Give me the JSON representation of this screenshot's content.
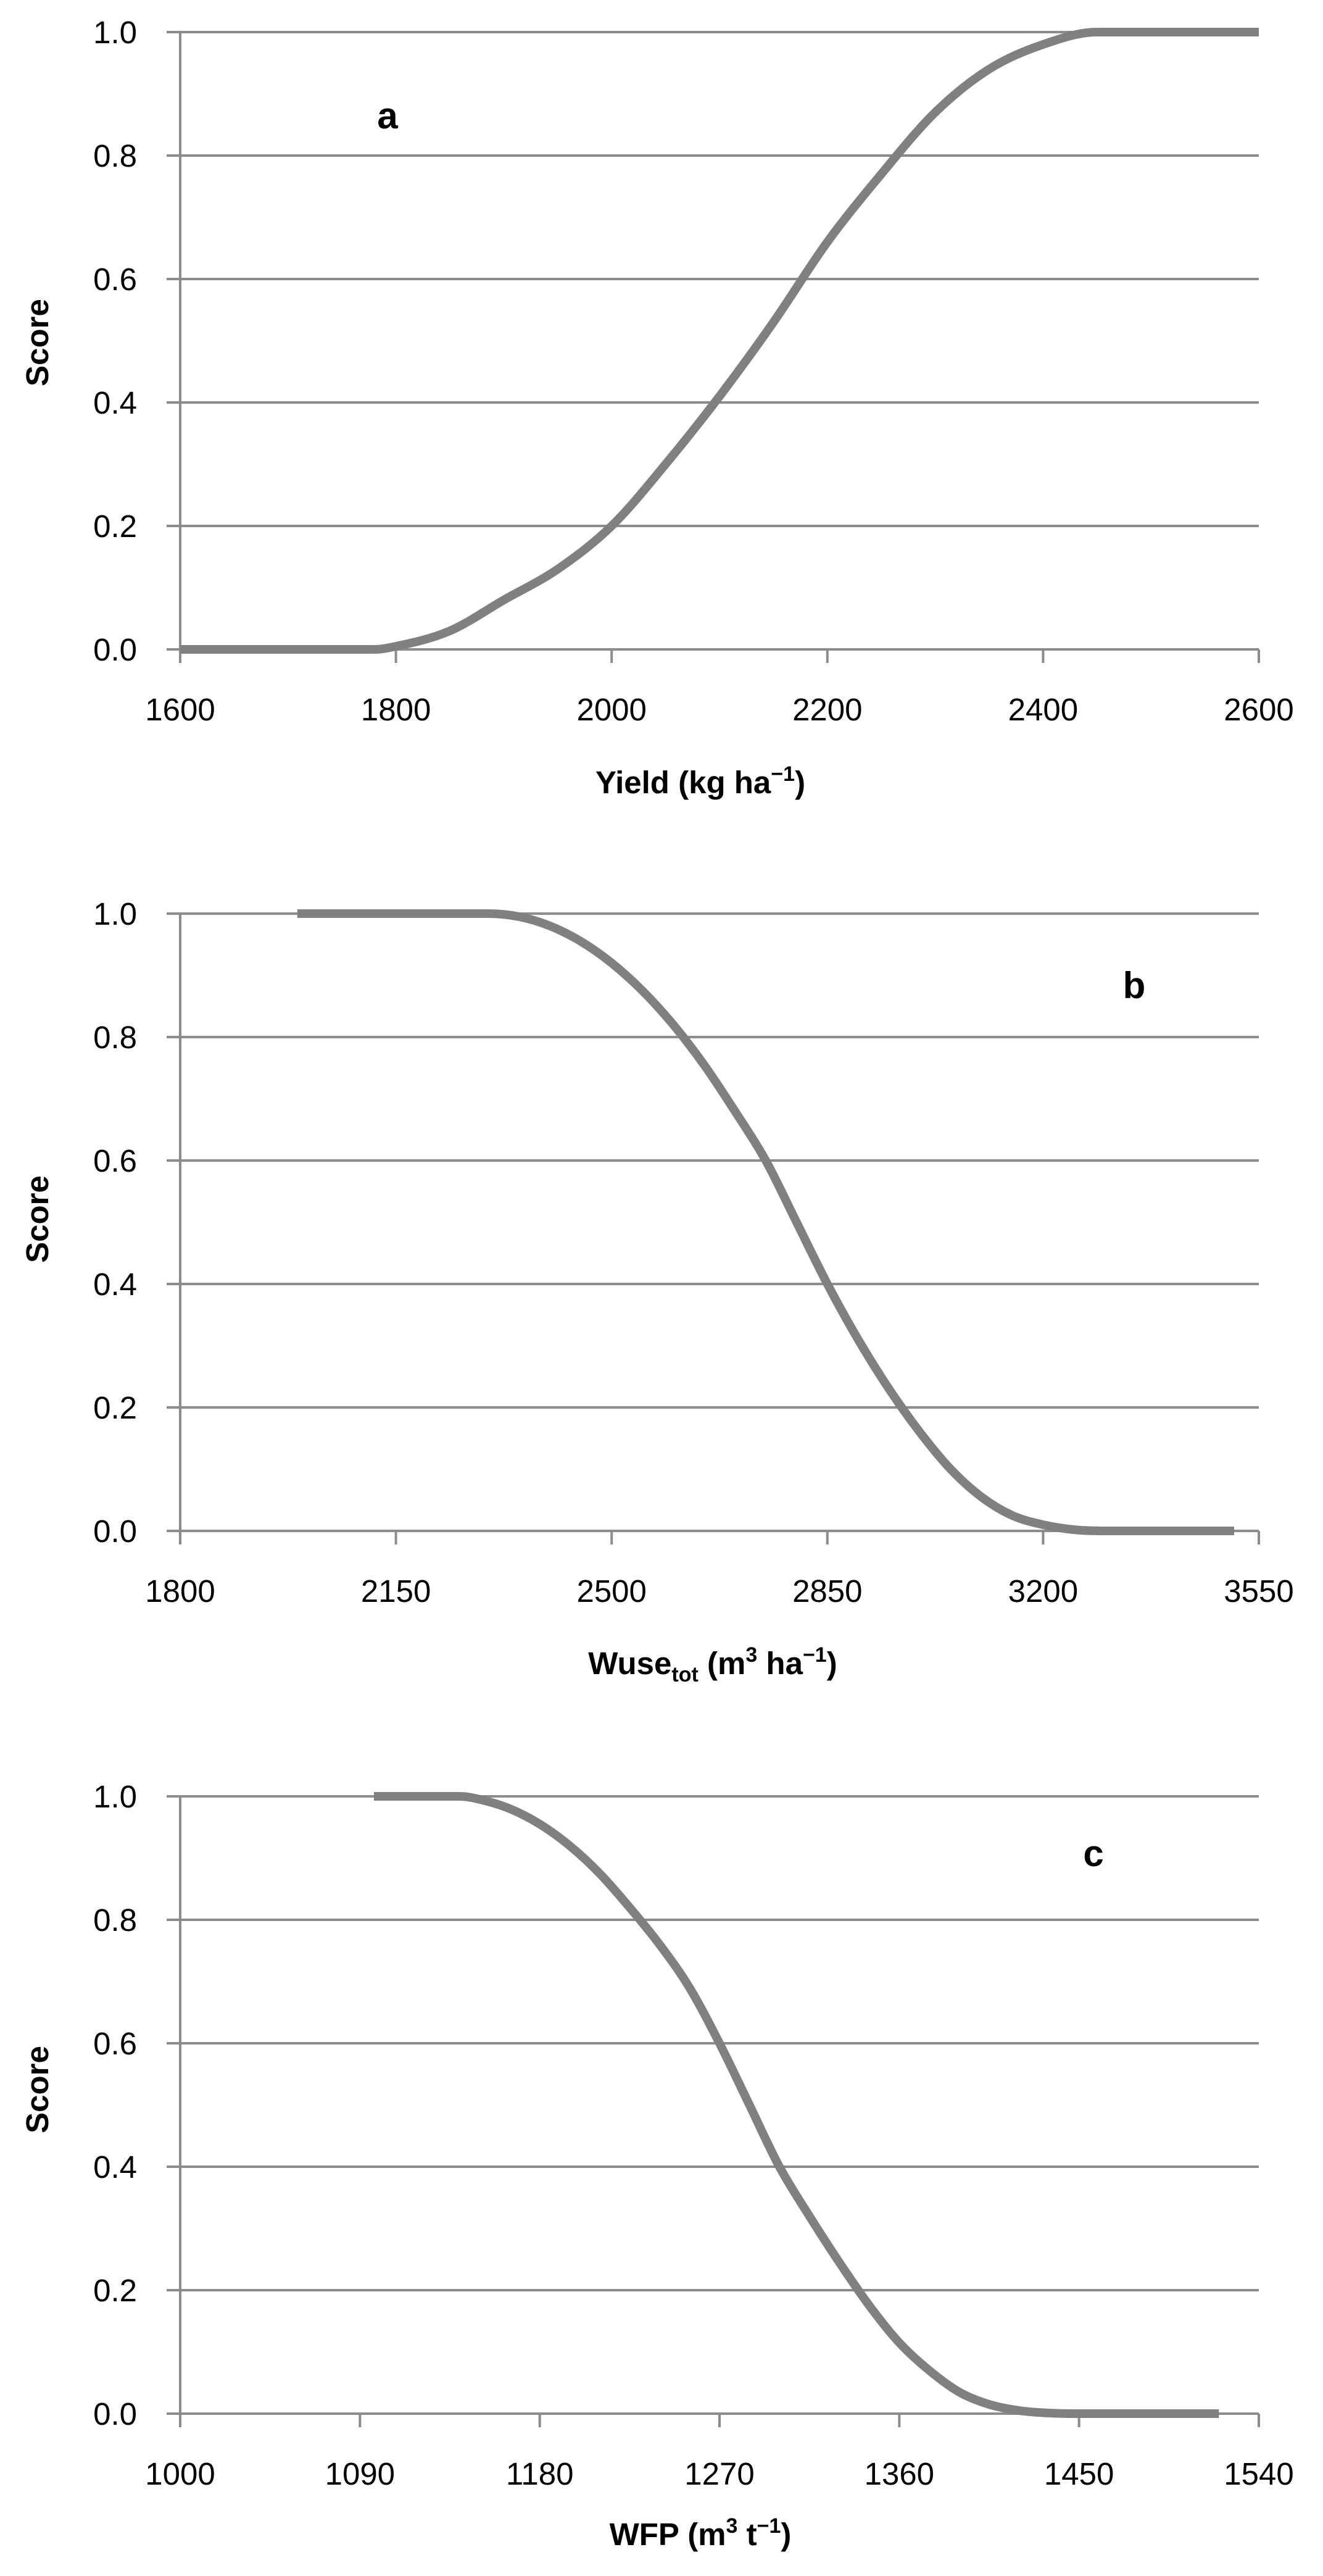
{
  "chart_data": [
    {
      "panel": "a",
      "type": "line",
      "title": "",
      "xlabel": "Yield (kg ha",
      "xlabel_sup": "−1",
      "xlabel_tail": ")",
      "ylabel": "Score",
      "xlim": [
        1600,
        2600
      ],
      "ylim": [
        0,
        1
      ],
      "xticks": [
        1600,
        1800,
        2000,
        2200,
        2400,
        2600
      ],
      "xtick_labels": [
        "1600",
        "1800",
        "2000",
        "2200",
        "2400",
        "2600"
      ],
      "yticks": [
        0,
        0.2,
        0.4,
        0.6,
        0.8,
        1.0
      ],
      "ytick_labels": [
        "0.0",
        "0.2",
        "0.4",
        "0.6",
        "0.8",
        "1.0"
      ],
      "grid": true,
      "series": [
        {
          "color": "#808080",
          "x": [
            1600,
            1700,
            1780,
            1800,
            1850,
            1900,
            1950,
            2000,
            2050,
            2100,
            2150,
            2200,
            2250,
            2300,
            2350,
            2400,
            2450,
            2500,
            2600
          ],
          "y": [
            0,
            0,
            0,
            0.005,
            0.03,
            0.08,
            0.13,
            0.2,
            0.3,
            0.41,
            0.53,
            0.66,
            0.77,
            0.87,
            0.94,
            0.98,
            1.0,
            1.0,
            1.0
          ]
        }
      ]
    },
    {
      "panel": "b",
      "type": "line",
      "title": "",
      "xlabel": "Wuse",
      "xlabel_sub": "tot",
      "xlabel_mid": " (m",
      "xlabel_sup1": "3",
      "xlabel_mid2": " ha",
      "xlabel_sup2": "−1",
      "xlabel_tail": ")",
      "ylabel": "Score",
      "xlim": [
        1800,
        3550
      ],
      "ylim": [
        0,
        1
      ],
      "xticks": [
        1800,
        2150,
        2500,
        2850,
        3200,
        3550
      ],
      "xtick_labels": [
        "1800",
        "2150",
        "2500",
        "2850",
        "3200",
        "3550"
      ],
      "yticks": [
        0,
        0.2,
        0.4,
        0.6,
        0.8,
        1.0
      ],
      "ytick_labels": [
        "0.0",
        "0.2",
        "0.4",
        "0.6",
        "0.8",
        "1.0"
      ],
      "grid": true,
      "series": [
        {
          "color": "#808080",
          "x": [
            1990,
            2200,
            2300,
            2350,
            2400,
            2450,
            2500,
            2550,
            2600,
            2650,
            2700,
            2750,
            2800,
            2850,
            2900,
            2950,
            3000,
            3050,
            3100,
            3150,
            3200,
            3250,
            3300,
            3400,
            3510
          ],
          "y": [
            1.0,
            1.0,
            1.0,
            0.995,
            0.98,
            0.955,
            0.92,
            0.875,
            0.82,
            0.755,
            0.68,
            0.6,
            0.5,
            0.4,
            0.31,
            0.23,
            0.16,
            0.1,
            0.055,
            0.025,
            0.01,
            0.002,
            0,
            0,
            0
          ]
        }
      ]
    },
    {
      "panel": "c",
      "type": "line",
      "title": "",
      "xlabel": "WFP (m",
      "xlabel_sup1": "3",
      "xlabel_mid": " t",
      "xlabel_sup2": "−1",
      "xlabel_tail": ")",
      "ylabel": "Score",
      "xlim": [
        1000,
        1540
      ],
      "ylim": [
        0,
        1
      ],
      "xticks": [
        1000,
        1090,
        1180,
        1270,
        1360,
        1450,
        1540
      ],
      "xtick_labels": [
        "1000",
        "1090",
        "1180",
        "1270",
        "1360",
        "1450",
        "1540"
      ],
      "yticks": [
        0,
        0.2,
        0.4,
        0.6,
        0.8,
        1.0
      ],
      "ytick_labels": [
        "0.0",
        "0.2",
        "0.4",
        "0.6",
        "0.8",
        "1.0"
      ],
      "grid": true,
      "series": [
        {
          "color": "#808080",
          "x": [
            1097,
            1140,
            1150,
            1165,
            1180,
            1195,
            1210,
            1225,
            1240,
            1255,
            1270,
            1285,
            1300,
            1315,
            1330,
            1345,
            1360,
            1375,
            1390,
            1405,
            1420,
            1435,
            1450,
            1480,
            1520
          ],
          "y": [
            1.0,
            1.0,
            0.995,
            0.98,
            0.955,
            0.92,
            0.875,
            0.82,
            0.76,
            0.69,
            0.6,
            0.5,
            0.4,
            0.32,
            0.245,
            0.175,
            0.115,
            0.07,
            0.035,
            0.015,
            0.005,
            0.001,
            0,
            0,
            0
          ]
        }
      ]
    }
  ]
}
